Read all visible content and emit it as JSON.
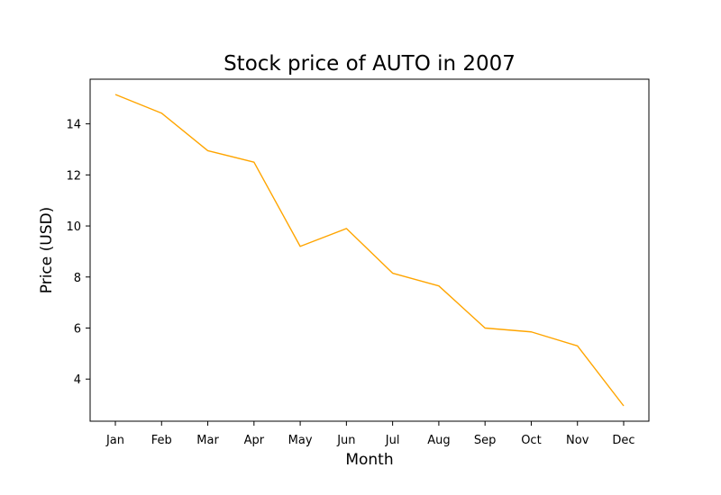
{
  "chart_data": {
    "type": "line",
    "title": "Stock price of AUTO in 2007",
    "xlabel": "Month",
    "ylabel": "Price (USD)",
    "categories": [
      "Jan",
      "Feb",
      "Mar",
      "Apr",
      "May",
      "Jun",
      "Jul",
      "Aug",
      "Sep",
      "Oct",
      "Nov",
      "Dec"
    ],
    "series": [
      {
        "values": [
          15.15,
          14.42,
          12.95,
          12.5,
          9.2,
          9.9,
          8.15,
          7.65,
          6.0,
          5.85,
          5.3,
          2.95
        ],
        "color": "#ffa500"
      }
    ],
    "yticks": [
      4,
      6,
      8,
      10,
      12,
      14
    ],
    "ylim": [
      2.35,
      15.75
    ],
    "grid": false,
    "legend": "none"
  }
}
